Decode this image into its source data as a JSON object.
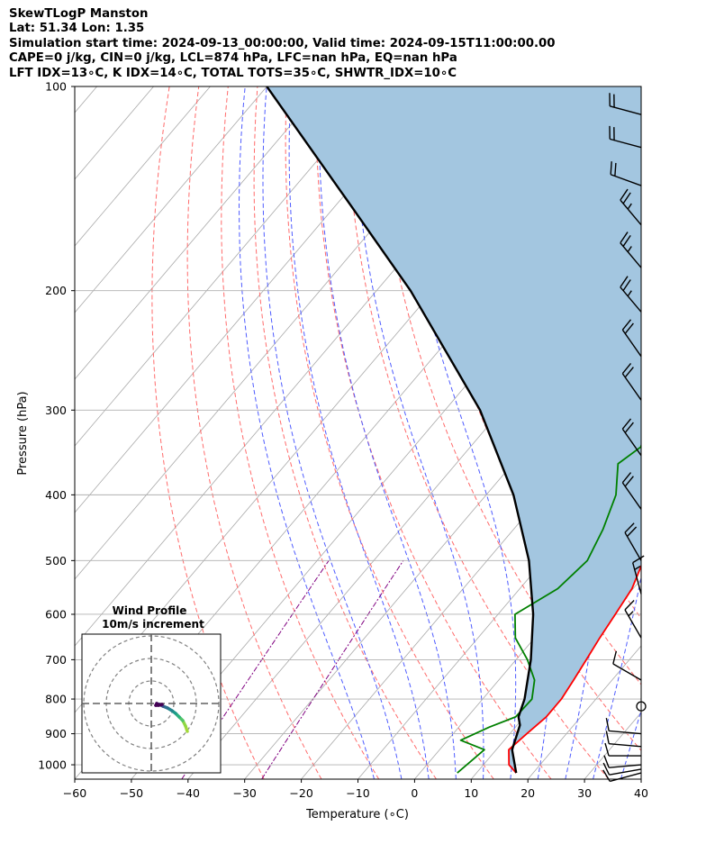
{
  "header": {
    "line1": "SkewTLogP Manston",
    "line2": "Lat: 51.34   Lon: 1.35",
    "line3": "Simulation start time: 2024-09-13_00:00:00, Valid time: 2024-09-15T11:00:00.00",
    "line4": "CAPE=0 j/kg, CIN=0 j/kg, LCL=874 hPa, LFC=nan hPa, EQ=nan hPa",
    "line5": "LFT IDX=13∘C, K IDX=14∘C, TOTAL TOTS=35∘C, SHWTR_IDX=10∘C"
  },
  "chart_data": {
    "type": "skew-t log-p",
    "xlabel": "Temperature (∘C)",
    "ylabel": "Pressure (hPa)",
    "xlim": [
      -60,
      40
    ],
    "ylim": [
      1050,
      100
    ],
    "x_ticks": [
      -60,
      -50,
      -40,
      -30,
      -20,
      -10,
      0,
      10,
      20,
      30,
      40
    ],
    "x_tick_labels": [
      "−60",
      "−50",
      "−40",
      "−30",
      "−20",
      "−10",
      "0",
      "10",
      "20",
      "30",
      "40"
    ],
    "y_ticks": [
      100,
      200,
      300,
      400,
      500,
      600,
      700,
      800,
      900,
      1000
    ],
    "y_tick_labels": [
      "100",
      "200",
      "300",
      "400",
      "500",
      "600",
      "700",
      "800",
      "900",
      "1000"
    ],
    "grid": true,
    "series": [
      {
        "name": "",
        "color": "#ff0000",
        "points": [
          [
            1028,
            17.0
          ],
          [
            1000,
            14.5
          ],
          [
            950,
            12.2
          ],
          [
            900,
            13.0
          ],
          [
            850,
            13.9
          ],
          [
            800,
            13.9
          ],
          [
            750,
            13.2
          ],
          [
            700,
            12.4
          ],
          [
            650,
            11.5
          ],
          [
            600,
            10.7
          ],
          [
            550,
            9.8
          ],
          [
            500,
            7.6
          ],
          [
            450,
            4.7
          ],
          [
            400,
            1.5
          ],
          [
            350,
            -2.4
          ],
          [
            300,
            -7.0
          ],
          [
            250,
            -12.5
          ],
          [
            230,
            -13.8
          ],
          [
            200,
            -14.0
          ],
          [
            180,
            -15.8
          ],
          [
            165,
            -15.3
          ],
          [
            150,
            -13.3
          ],
          [
            140,
            -10.2
          ],
          [
            130,
            -9.7
          ],
          [
            125,
            -8.9
          ],
          [
            115,
            -7.8
          ],
          [
            100,
            -5.8
          ]
        ]
      },
      {
        "name": "",
        "color": "#008000",
        "points": [
          [
            1028,
            6.6
          ],
          [
            950,
            7.9
          ],
          [
            920,
            2.3
          ],
          [
            880,
            5.4
          ],
          [
            850,
            8.5
          ],
          [
            800,
            8.7
          ],
          [
            750,
            6.3
          ],
          [
            700,
            2.0
          ],
          [
            650,
            -3.4
          ],
          [
            600,
            -7.0
          ],
          [
            550,
            -3.3
          ],
          [
            500,
            -2.3
          ],
          [
            450,
            -4.2
          ],
          [
            400,
            -7.1
          ],
          [
            360,
            -11.4
          ],
          [
            340,
            -9.9
          ],
          [
            320,
            -11.6
          ],
          [
            300,
            -12.6
          ],
          [
            280,
            -13.9
          ],
          [
            260,
            -14.1
          ],
          [
            240,
            -16.9
          ],
          [
            220,
            -19.6
          ],
          [
            200,
            -21.5
          ],
          [
            180,
            -22.5
          ],
          [
            170,
            -22.5
          ],
          [
            160,
            -24.9
          ],
          [
            145,
            -28.1
          ],
          [
            125,
            -29.5
          ],
          [
            112,
            -28.3
          ],
          [
            100,
            -28.0
          ]
        ]
      },
      {
        "name": "",
        "color": "#000000",
        "points": [
          [
            1028,
            17.0
          ],
          [
            950,
            12.8
          ],
          [
            874,
            10.5
          ],
          [
            850,
            9.0
          ],
          [
            800,
            7.4
          ],
          [
            700,
            2.6
          ],
          [
            600,
            -3.8
          ],
          [
            500,
            -12.6
          ],
          [
            400,
            -25.2
          ],
          [
            300,
            -43.8
          ],
          [
            200,
            -74.0
          ],
          [
            150,
            -97.2
          ],
          [
            100,
            -130
          ]
        ]
      }
    ],
    "cape_cin_fill": "#a3c6e0",
    "isotherm_color": "#a9a9a9",
    "dry_adiabat_color": "#ff6b6b",
    "moist_adiabat_color": "#4f5cff",
    "mixing_ratio_color": "#800080",
    "wind_barbs": [
      {
        "p": 1028,
        "speed_kt": 11,
        "dir_deg": 255
      },
      {
        "p": 1015,
        "speed_kt": 12,
        "dir_deg": 260
      },
      {
        "p": 1000,
        "speed_kt": 12,
        "dir_deg": 265
      },
      {
        "p": 970,
        "speed_kt": 10,
        "dir_deg": 270
      },
      {
        "p": 940,
        "speed_kt": 10,
        "dir_deg": 275
      },
      {
        "p": 900,
        "speed_kt": 10,
        "dir_deg": 275
      },
      {
        "p": 820,
        "speed_kt": 0,
        "dir_deg": 0
      },
      {
        "p": 750,
        "speed_kt": 10,
        "dir_deg": 300
      },
      {
        "p": 650,
        "speed_kt": 15,
        "dir_deg": 330
      },
      {
        "p": 560,
        "speed_kt": 15,
        "dir_deg": 345
      },
      {
        "p": 500,
        "speed_kt": 20,
        "dir_deg": 330
      },
      {
        "p": 420,
        "speed_kt": 20,
        "dir_deg": 325
      },
      {
        "p": 350,
        "speed_kt": 20,
        "dir_deg": 325
      },
      {
        "p": 290,
        "speed_kt": 20,
        "dir_deg": 325
      },
      {
        "p": 250,
        "speed_kt": 20,
        "dir_deg": 325
      },
      {
        "p": 215,
        "speed_kt": 25,
        "dir_deg": 320
      },
      {
        "p": 185,
        "speed_kt": 25,
        "dir_deg": 320
      },
      {
        "p": 160,
        "speed_kt": 25,
        "dir_deg": 320
      },
      {
        "p": 140,
        "speed_kt": 20,
        "dir_deg": 290
      },
      {
        "p": 123,
        "speed_kt": 20,
        "dir_deg": 285
      },
      {
        "p": 110,
        "speed_kt": 20,
        "dir_deg": 285
      }
    ],
    "wind_profile": {
      "title_line1": "Wind Profile",
      "title_line2": "10m/s increment",
      "rings_ms": [
        10,
        20,
        30
      ]
    }
  }
}
